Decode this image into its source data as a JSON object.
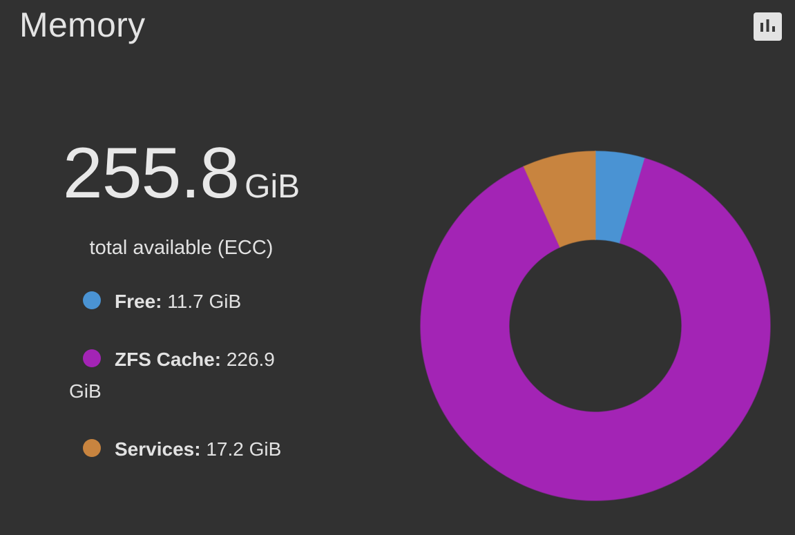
{
  "card": {
    "title": "Memory",
    "report_button_icon": "bar-chart-icon"
  },
  "total": {
    "value": "255.8",
    "unit": "GiB",
    "caption": "total available (ECC)"
  },
  "legend": [
    {
      "label": "Free:",
      "value": "11.7 GiB",
      "color": "#4a93d3"
    },
    {
      "label": "ZFS Cache:",
      "value": "226.9 GiB",
      "color": "#a324b5"
    },
    {
      "label": "Services:",
      "value": "17.2 GiB",
      "color": "#c8843f"
    }
  ],
  "chart_data": {
    "type": "pie",
    "style": "doughnut",
    "categories": [
      "Free",
      "ZFS Cache",
      "Services"
    ],
    "values": [
      11.7,
      226.9,
      17.2
    ],
    "unit": "GiB",
    "colors": [
      "#4a93d3",
      "#a324b5",
      "#c8843f"
    ],
    "title": "",
    "legend": "left"
  }
}
